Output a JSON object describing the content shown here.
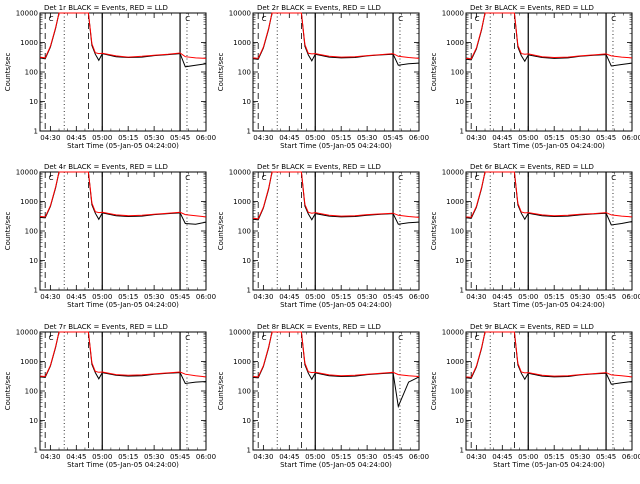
{
  "colors": {
    "events": "#000000",
    "lld": "#ff0000",
    "axis": "#000000",
    "background": "#ffffff"
  },
  "common": {
    "ylabel": "Counts/sec",
    "xlabel": "Start Time (05-Jan-05 04:24:00)",
    "x_ticks": [
      "04:30",
      "04:45",
      "05:00",
      "05:15",
      "05:30",
      "05:45",
      "06:00"
    ],
    "y_ticks": [
      "1",
      "10",
      "100",
      "1000",
      "10000"
    ],
    "legend_markers": [
      "C",
      "C"
    ]
  },
  "chart_data": [
    {
      "type": "line",
      "title": "Det 1r BLACK = Events, RED = LLD",
      "xlabel": "Start Time (05-Jan-05 04:24:00)",
      "ylabel": "Counts/sec",
      "xlim": [
        "04:24",
        "06:00"
      ],
      "ylim": [
        1,
        10000
      ],
      "yscale": "log",
      "series": [
        {
          "name": "Events",
          "color": "black"
        },
        {
          "name": "LLD",
          "color": "red"
        }
      ],
      "x": [
        "04:24",
        "04:27",
        "04:30",
        "04:33",
        "04:35",
        "04:39",
        "04:44",
        "04:52",
        "04:54",
        "04:56",
        "04:58",
        "05:00",
        "05:08",
        "05:15",
        "05:23",
        "05:30",
        "05:38",
        "05:45",
        "05:48",
        "05:54",
        "06:00"
      ],
      "events": [
        300,
        280,
        700,
        3000,
        10000,
        10000,
        10000,
        10000,
        800,
        400,
        250,
        420,
        330,
        310,
        320,
        360,
        390,
        420,
        150,
        170,
        190
      ],
      "lld": [
        320,
        300,
        750,
        3200,
        10000,
        10000,
        10000,
        10000,
        900,
        450,
        420,
        430,
        350,
        320,
        340,
        370,
        400,
        440,
        330,
        300,
        290
      ]
    },
    {
      "type": "line",
      "title": "Det 2r BLACK = Events, RED = LLD",
      "xlabel": "Start Time (05-Jan-05 04:24:00)",
      "ylabel": "Counts/sec",
      "xlim": [
        "04:24",
        "06:00"
      ],
      "ylim": [
        1,
        10000
      ],
      "yscale": "log",
      "series": [
        {
          "name": "Events",
          "color": "black"
        },
        {
          "name": "LLD",
          "color": "red"
        }
      ],
      "x": [
        "04:24",
        "04:27",
        "04:30",
        "04:33",
        "04:35",
        "04:39",
        "04:44",
        "04:52",
        "04:54",
        "04:56",
        "04:58",
        "05:00",
        "05:08",
        "05:15",
        "05:23",
        "05:30",
        "05:38",
        "05:45",
        "05:48",
        "05:54",
        "06:00"
      ],
      "events": [
        280,
        270,
        650,
        2800,
        10000,
        10000,
        10000,
        10000,
        750,
        380,
        240,
        400,
        320,
        300,
        310,
        350,
        380,
        400,
        170,
        190,
        200
      ],
      "lld": [
        300,
        290,
        700,
        3000,
        10000,
        10000,
        10000,
        10000,
        850,
        430,
        410,
        420,
        340,
        320,
        330,
        360,
        390,
        420,
        340,
        310,
        290
      ]
    },
    {
      "type": "line",
      "title": "Det 3r BLACK = Events, RED = LLD",
      "xlabel": "Start Time (05-Jan-05 04:24:00)",
      "ylabel": "Counts/sec",
      "xlim": [
        "04:24",
        "06:00"
      ],
      "ylim": [
        1,
        10000
      ],
      "yscale": "log",
      "series": [
        {
          "name": "Events",
          "color": "black"
        },
        {
          "name": "LLD",
          "color": "red"
        }
      ],
      "x": [
        "04:24",
        "04:27",
        "04:30",
        "04:33",
        "04:35",
        "04:39",
        "04:44",
        "04:52",
        "04:54",
        "04:56",
        "04:58",
        "05:00",
        "05:08",
        "05:15",
        "05:23",
        "05:30",
        "05:38",
        "05:45",
        "05:48",
        "05:54",
        "06:00"
      ],
      "events": [
        270,
        260,
        600,
        2700,
        10000,
        10000,
        10000,
        10000,
        700,
        360,
        230,
        380,
        310,
        290,
        300,
        340,
        370,
        390,
        160,
        180,
        200
      ],
      "lld": [
        290,
        280,
        650,
        2900,
        10000,
        10000,
        10000,
        10000,
        800,
        420,
        400,
        410,
        330,
        310,
        320,
        350,
        380,
        410,
        350,
        320,
        300
      ]
    },
    {
      "type": "line",
      "title": "Det 4r BLACK = Events, RED = LLD",
      "xlabel": "Start Time (05-Jan-05 04:24:00)",
      "ylabel": "Counts/sec",
      "xlim": [
        "04:24",
        "06:00"
      ],
      "ylim": [
        1,
        10000
      ],
      "yscale": "log",
      "series": [
        {
          "name": "Events",
          "color": "black"
        },
        {
          "name": "LLD",
          "color": "red"
        }
      ],
      "x": [
        "04:24",
        "04:27",
        "04:30",
        "04:33",
        "04:35",
        "04:39",
        "04:44",
        "04:52",
        "04:54",
        "04:56",
        "04:58",
        "05:00",
        "05:08",
        "05:15",
        "05:23",
        "05:30",
        "05:38",
        "05:45",
        "05:48",
        "05:54",
        "06:00"
      ],
      "events": [
        290,
        280,
        680,
        2900,
        10000,
        10000,
        10000,
        10000,
        780,
        400,
        250,
        410,
        330,
        310,
        320,
        360,
        390,
        410,
        180,
        170,
        200
      ],
      "lld": [
        310,
        300,
        720,
        3100,
        10000,
        10000,
        10000,
        10000,
        880,
        450,
        420,
        430,
        350,
        330,
        340,
        370,
        400,
        430,
        360,
        330,
        300
      ]
    },
    {
      "type": "line",
      "title": "Det 5r BLACK = Events, RED = LLD",
      "xlabel": "Start Time (05-Jan-05 04:24:00)",
      "ylabel": "Counts/sec",
      "xlim": [
        "04:24",
        "06:00"
      ],
      "ylim": [
        1,
        10000
      ],
      "yscale": "log",
      "series": [
        {
          "name": "Events",
          "color": "black"
        },
        {
          "name": "LLD",
          "color": "red"
        }
      ],
      "x": [
        "04:24",
        "04:27",
        "04:30",
        "04:33",
        "04:35",
        "04:39",
        "04:44",
        "04:52",
        "04:54",
        "04:56",
        "04:58",
        "05:00",
        "05:08",
        "05:15",
        "05:23",
        "05:30",
        "05:38",
        "05:45",
        "05:48",
        "05:54",
        "06:00"
      ],
      "events": [
        250,
        240,
        600,
        2600,
        10000,
        10000,
        10000,
        10000,
        700,
        380,
        240,
        390,
        320,
        300,
        310,
        340,
        370,
        390,
        170,
        190,
        200
      ],
      "lld": [
        270,
        260,
        640,
        2800,
        10000,
        10000,
        10000,
        10000,
        800,
        430,
        400,
        420,
        340,
        320,
        330,
        360,
        380,
        400,
        340,
        310,
        290
      ]
    },
    {
      "type": "line",
      "title": "Det 6r BLACK = Events, RED = LLD",
      "xlabel": "Start Time (05-Jan-05 04:24:00)",
      "ylabel": "Counts/sec",
      "xlim": [
        "04:24",
        "06:00"
      ],
      "ylim": [
        1,
        10000
      ],
      "yscale": "log",
      "series": [
        {
          "name": "Events",
          "color": "black"
        },
        {
          "name": "LLD",
          "color": "red"
        }
      ],
      "x": [
        "04:24",
        "04:27",
        "04:30",
        "04:33",
        "04:35",
        "04:39",
        "04:44",
        "04:52",
        "04:54",
        "04:56",
        "04:58",
        "05:00",
        "05:08",
        "05:15",
        "05:23",
        "05:30",
        "05:38",
        "05:45",
        "05:48",
        "05:54",
        "06:00"
      ],
      "events": [
        280,
        270,
        640,
        2800,
        10000,
        10000,
        10000,
        10000,
        760,
        400,
        250,
        400,
        330,
        310,
        320,
        350,
        380,
        400,
        160,
        180,
        210
      ],
      "lld": [
        300,
        290,
        690,
        3000,
        10000,
        10000,
        10000,
        10000,
        860,
        440,
        410,
        420,
        350,
        330,
        340,
        370,
        390,
        420,
        350,
        320,
        300
      ]
    },
    {
      "type": "line",
      "title": "Det 7r BLACK = Events, RED = LLD",
      "xlabel": "Start Time (05-Jan-05 04:24:00)",
      "ylabel": "Counts/sec",
      "xlim": [
        "04:24",
        "06:00"
      ],
      "ylim": [
        1,
        10000
      ],
      "yscale": "log",
      "series": [
        {
          "name": "Events",
          "color": "black"
        },
        {
          "name": "LLD",
          "color": "red"
        }
      ],
      "x": [
        "04:24",
        "04:27",
        "04:30",
        "04:33",
        "04:35",
        "04:39",
        "04:44",
        "04:52",
        "04:54",
        "04:56",
        "04:58",
        "05:00",
        "05:08",
        "05:15",
        "05:23",
        "05:30",
        "05:38",
        "05:45",
        "05:48",
        "05:54",
        "06:00"
      ],
      "events": [
        300,
        290,
        700,
        3000,
        10000,
        10000,
        10000,
        10000,
        800,
        420,
        260,
        420,
        340,
        320,
        330,
        370,
        400,
        420,
        180,
        200,
        210
      ],
      "lld": [
        320,
        310,
        740,
        3200,
        10000,
        10000,
        10000,
        10000,
        900,
        460,
        430,
        440,
        360,
        340,
        350,
        380,
        410,
        440,
        370,
        330,
        300
      ]
    },
    {
      "type": "line",
      "title": "Det 8r BLACK = Events, RED = LLD",
      "xlabel": "Start Time (05-Jan-05 04:24:00)",
      "ylabel": "Counts/sec",
      "xlim": [
        "04:24",
        "06:00"
      ],
      "ylim": [
        1,
        10000
      ],
      "yscale": "log",
      "series": [
        {
          "name": "Events",
          "color": "black"
        },
        {
          "name": "LLD",
          "color": "red"
        }
      ],
      "x": [
        "04:24",
        "04:27",
        "04:30",
        "04:33",
        "04:35",
        "04:39",
        "04:44",
        "04:52",
        "04:54",
        "04:56",
        "04:58",
        "05:00",
        "05:08",
        "05:15",
        "05:23",
        "05:30",
        "05:38",
        "05:45",
        "05:48",
        "05:54",
        "06:00"
      ],
      "events": [
        290,
        280,
        680,
        2900,
        10000,
        10000,
        10000,
        10000,
        780,
        400,
        250,
        410,
        330,
        310,
        320,
        360,
        390,
        410,
        30,
        200,
        300
      ],
      "lld": [
        310,
        300,
        720,
        3100,
        10000,
        10000,
        10000,
        10000,
        880,
        450,
        420,
        430,
        350,
        330,
        340,
        370,
        400,
        430,
        360,
        330,
        310
      ]
    },
    {
      "type": "line",
      "title": "Det 9r BLACK = Events, RED = LLD",
      "xlabel": "Start Time (05-Jan-05 04:24:00)",
      "ylabel": "Counts/sec",
      "xlim": [
        "04:24",
        "06:00"
      ],
      "ylim": [
        1,
        10000
      ],
      "yscale": "log",
      "series": [
        {
          "name": "Events",
          "color": "black"
        },
        {
          "name": "LLD",
          "color": "red"
        }
      ],
      "x": [
        "04:24",
        "04:27",
        "04:30",
        "04:33",
        "04:35",
        "04:39",
        "04:44",
        "04:52",
        "04:54",
        "04:56",
        "04:58",
        "05:00",
        "05:08",
        "05:15",
        "05:23",
        "05:30",
        "05:38",
        "05:45",
        "05:48",
        "05:54",
        "06:00"
      ],
      "events": [
        280,
        270,
        650,
        2800,
        10000,
        10000,
        10000,
        10000,
        760,
        400,
        250,
        400,
        320,
        300,
        310,
        350,
        380,
        400,
        170,
        190,
        210
      ],
      "lld": [
        300,
        290,
        700,
        3000,
        10000,
        10000,
        10000,
        10000,
        860,
        440,
        410,
        420,
        340,
        320,
        330,
        360,
        390,
        420,
        350,
        330,
        300
      ]
    }
  ],
  "markers": [
    {
      "time": "04:27",
      "style": "dashed"
    },
    {
      "time": "04:38",
      "style": "dotted"
    },
    {
      "time": "04:52",
      "style": "dashed"
    },
    {
      "time": "05:00",
      "style": "solid"
    },
    {
      "time": "05:45",
      "style": "solid"
    },
    {
      "time": "05:49",
      "style": "dotted"
    }
  ]
}
